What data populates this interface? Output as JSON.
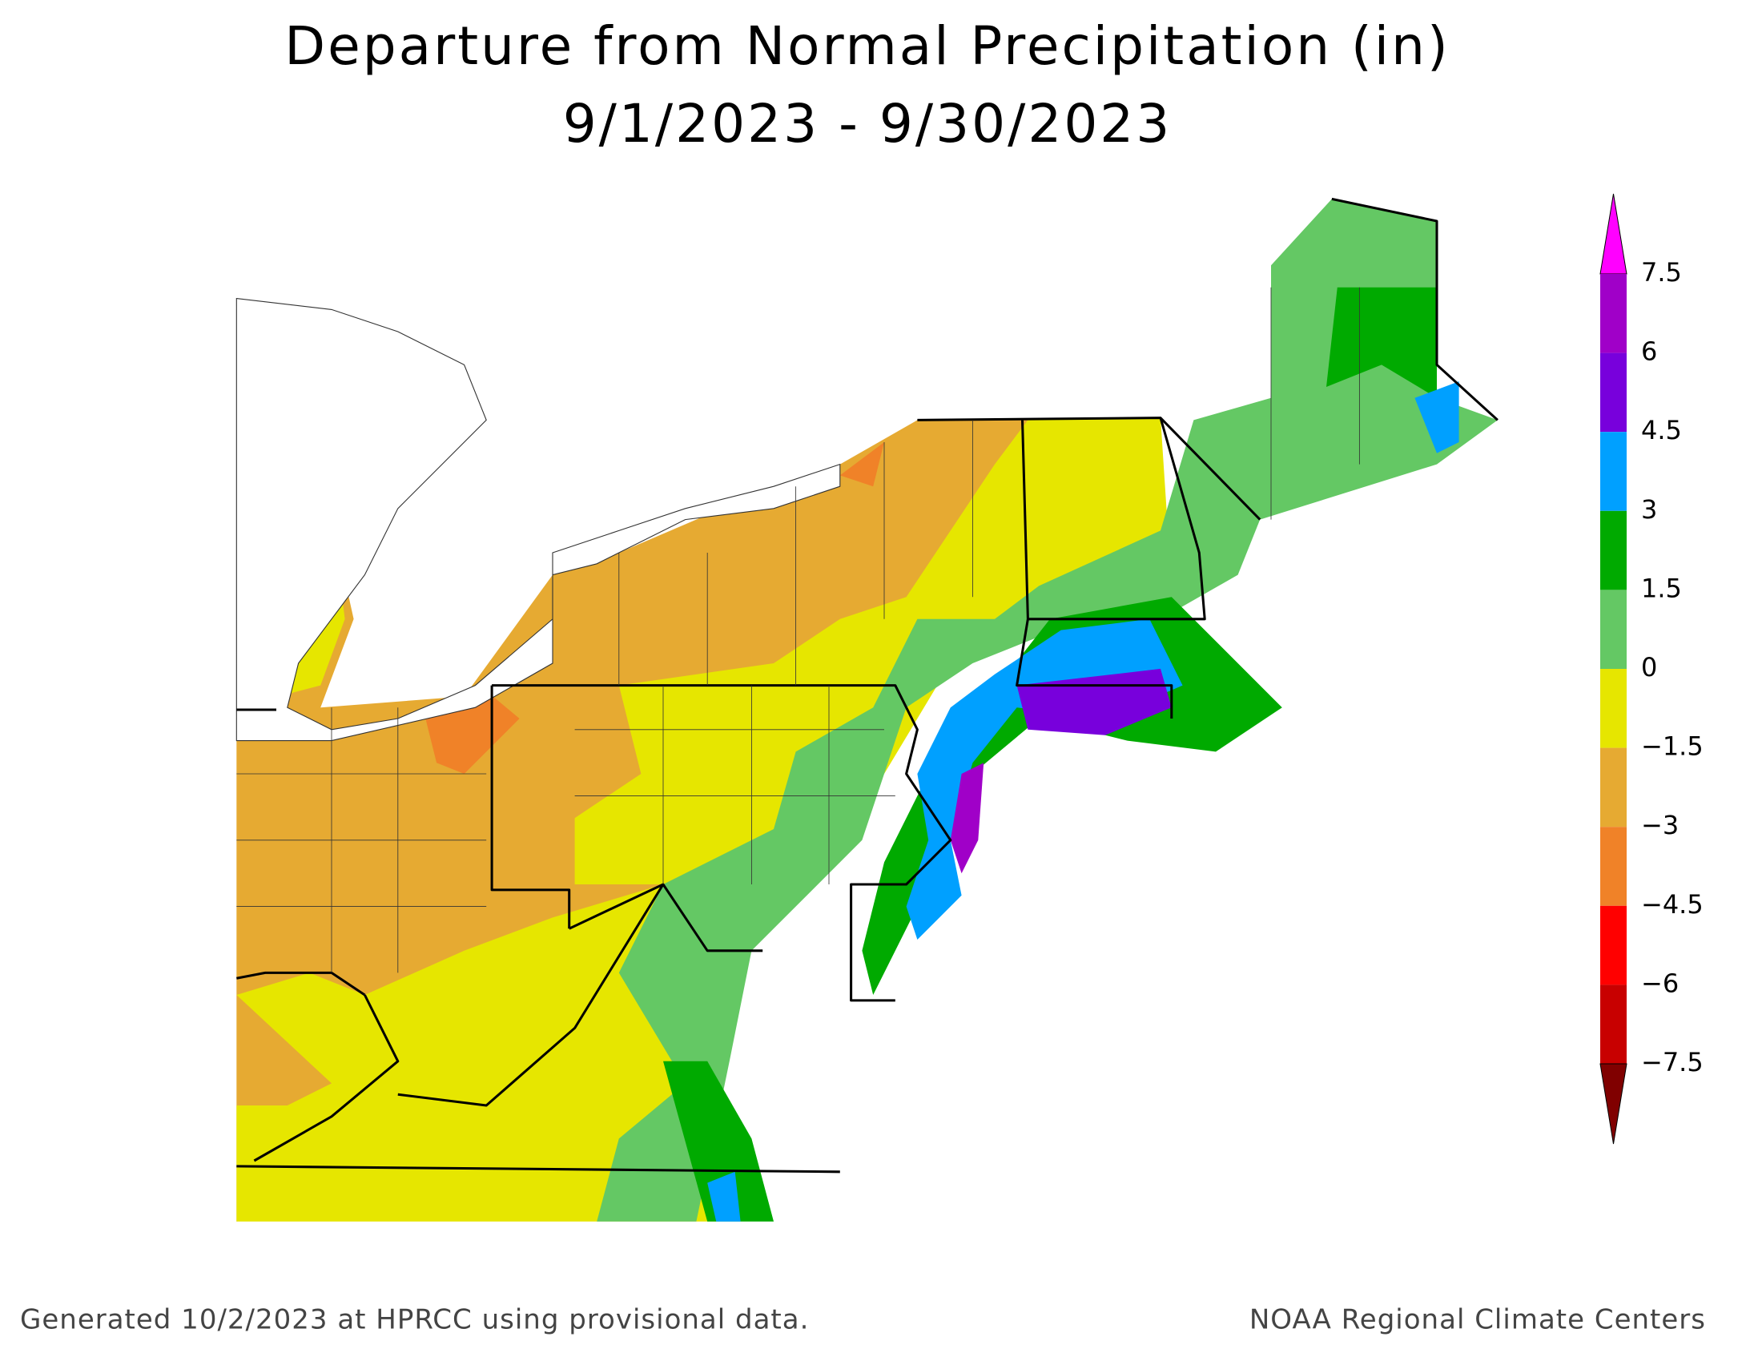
{
  "header": {
    "title": "Departure from Normal Precipitation (in)",
    "subtitle": "9/1/2023 - 9/30/2023"
  },
  "legend": {
    "labels": [
      "7.5",
      "6",
      "4.5",
      "3",
      "1.5",
      "0",
      "−1.5",
      "−3",
      "−4.5",
      "−6",
      "−7.5"
    ],
    "colors": [
      "#ff00ff",
      "#a000c8",
      "#7800dc",
      "#00a0ff",
      "#00aa00",
      "#64c864",
      "#e6e600",
      "#e6aa32",
      "#f08228",
      "#ff0000",
      "#c80000",
      "#800000"
    ]
  },
  "footer": {
    "left": "Generated 10/2/2023 at HPRCC using provisional data.",
    "right": "NOAA Regional Climate Centers"
  }
}
